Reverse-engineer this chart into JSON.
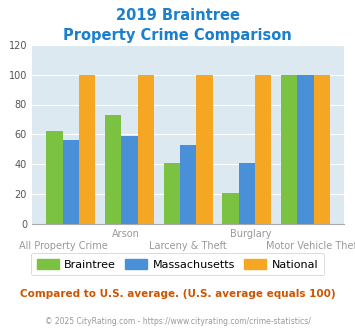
{
  "title_line1": "2019 Braintree",
  "title_line2": "Property Crime Comparison",
  "title_color": "#1a7fcc",
  "categories": [
    "All Property Crime",
    "Arson",
    "Larceny & Theft",
    "Burglary",
    "Motor Vehicle Theft"
  ],
  "x_labels_top": [
    "",
    "Arson",
    "",
    "Burglary",
    ""
  ],
  "x_labels_bottom": [
    "All Property Crime",
    "",
    "Larceny & Theft",
    "",
    "Motor Vehicle Theft"
  ],
  "braintree": [
    62,
    73,
    41,
    21,
    100
  ],
  "massachusetts": [
    56,
    59,
    53,
    41,
    100
  ],
  "national": [
    100,
    100,
    100,
    100,
    100
  ],
  "color_braintree": "#7bc142",
  "color_massachusetts": "#4a90d9",
  "color_national": "#f5a623",
  "ylim": [
    0,
    120
  ],
  "yticks": [
    0,
    20,
    40,
    60,
    80,
    100,
    120
  ],
  "bar_width": 0.28,
  "bg_color": "#dce9f0",
  "legend_labels": [
    "Braintree",
    "Massachusetts",
    "National"
  ],
  "footer_text": "Compared to U.S. average. (U.S. average equals 100)",
  "footer_color": "#cc5500",
  "credit_text": "© 2025 CityRating.com - https://www.cityrating.com/crime-statistics/",
  "credit_color": "#999999",
  "grid_color": "#ffffff"
}
